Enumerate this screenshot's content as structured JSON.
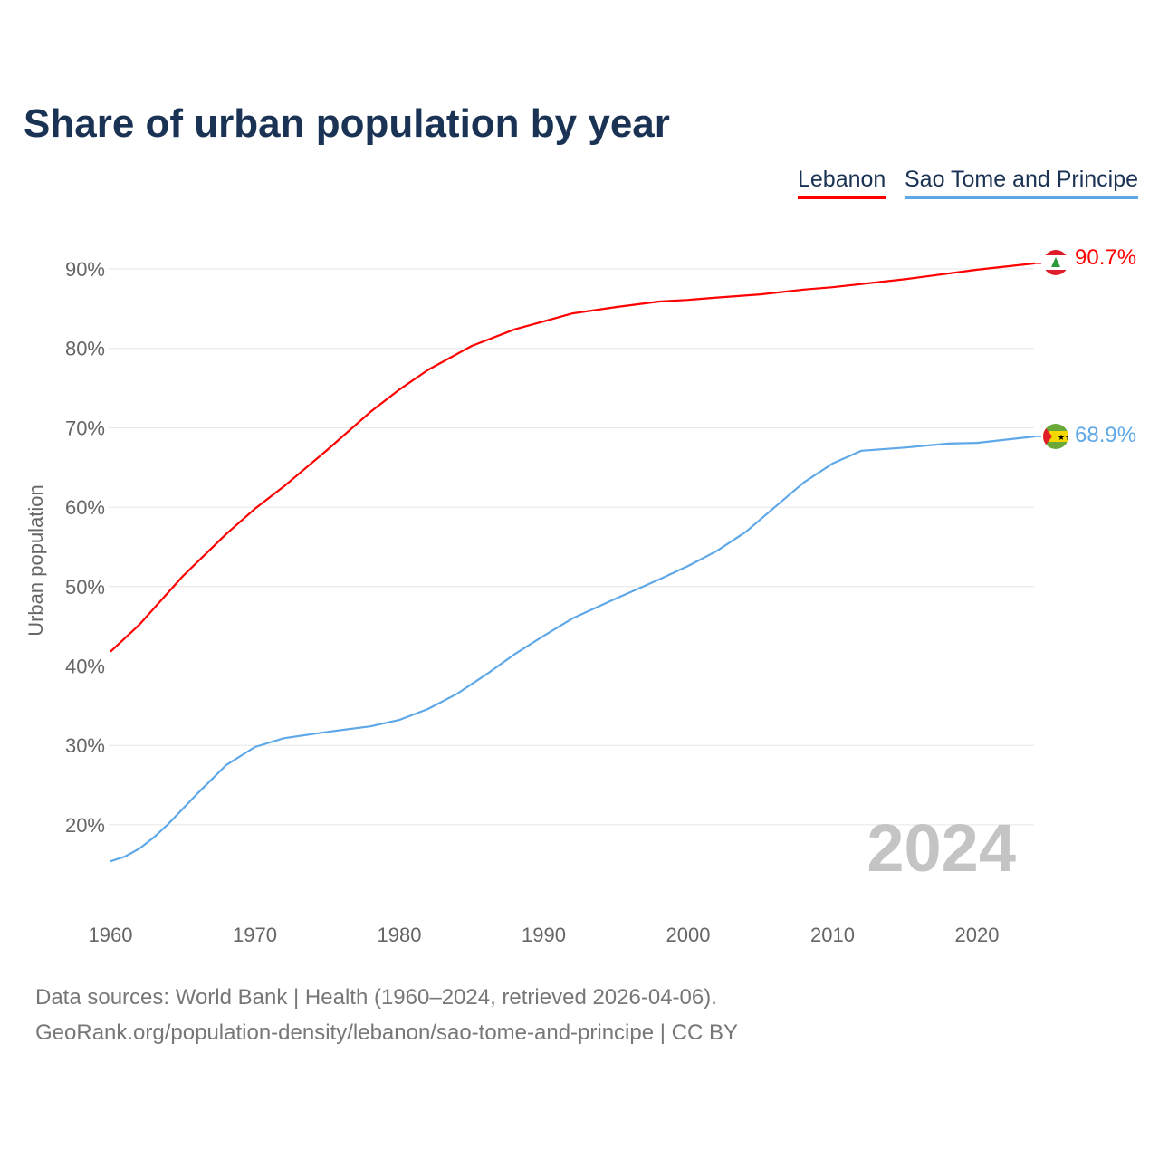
{
  "title": "Share of urban population by year",
  "legend": [
    "Lebanon",
    "Sao Tome and Principe"
  ],
  "year_watermark": "2024",
  "footer": {
    "line1": "Data sources: World Bank | Health (1960–2024, retrieved 2026-04-06).",
    "line2": "GeoRank.org/population-density/lebanon/sao-tome-and-principe | CC BY"
  },
  "chart_data": {
    "type": "line",
    "title": "Share of urban population by year",
    "xlabel": "",
    "ylabel": "Urban population",
    "xlim": [
      1960,
      2024
    ],
    "ylim": [
      10,
      95
    ],
    "xticks": [
      1960,
      1970,
      1980,
      1990,
      2000,
      2010,
      2020
    ],
    "yticks": [
      20,
      30,
      40,
      50,
      60,
      70,
      80,
      90
    ],
    "ytick_labels": [
      "20%",
      "30%",
      "40%",
      "50%",
      "60%",
      "70%",
      "80%",
      "90%"
    ],
    "grid": true,
    "legend_position": "top-right",
    "series": [
      {
        "name": "Lebanon",
        "color": "#ff0000",
        "end_label": "90.7%",
        "x": [
          1960,
          1962,
          1965,
          1968,
          1970,
          1972,
          1975,
          1978,
          1980,
          1982,
          1985,
          1988,
          1990,
          1992,
          1995,
          1998,
          2000,
          2002,
          2005,
          2008,
          2010,
          2015,
          2020,
          2024
        ],
        "y": [
          41.8,
          45.2,
          51.3,
          56.6,
          59.8,
          62.6,
          67.2,
          72.0,
          74.8,
          77.3,
          80.3,
          82.4,
          83.4,
          84.4,
          85.2,
          85.9,
          86.1,
          86.4,
          86.8,
          87.4,
          87.7,
          88.7,
          89.9,
          90.7
        ]
      },
      {
        "name": "Sao Tome and Principe",
        "color": "#5fa8e8",
        "end_label": "68.9%",
        "x": [
          1960,
          1961,
          1962,
          1963,
          1964,
          1966,
          1968,
          1970,
          1972,
          1975,
          1978,
          1980,
          1982,
          1984,
          1986,
          1988,
          1990,
          1992,
          1995,
          1998,
          2000,
          2002,
          2004,
          2006,
          2008,
          2010,
          2012,
          2015,
          2018,
          2020,
          2024
        ],
        "y": [
          15.4,
          16.0,
          17.0,
          18.4,
          20.1,
          23.9,
          27.5,
          29.8,
          30.9,
          31.7,
          32.4,
          33.2,
          34.6,
          36.5,
          38.9,
          41.5,
          43.8,
          46.0,
          48.5,
          50.9,
          52.6,
          54.5,
          56.9,
          60.0,
          63.1,
          65.5,
          67.1,
          67.5,
          68.0,
          68.1,
          68.9
        ]
      }
    ]
  }
}
